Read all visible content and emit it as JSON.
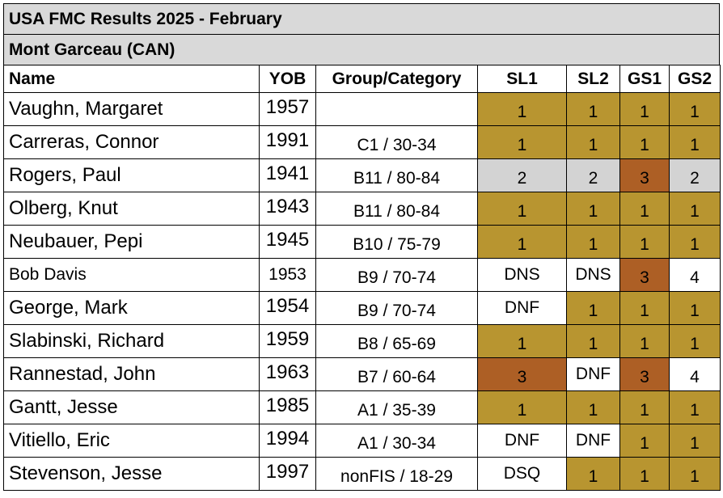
{
  "title": "USA FMC Results 2025 - February",
  "subtitle": "Mont Garceau (CAN)",
  "headers": {
    "name": "Name",
    "yob": "YOB",
    "group": "Group/Category",
    "sl1": "SL1",
    "sl2": "SL2",
    "gs1": "GS1",
    "gs2": "GS2"
  },
  "colors": {
    "gold": "#b89530",
    "bronze": "#ad5f25",
    "silver": "#d3d3d3",
    "header": "#d9d9d9"
  },
  "rows": [
    {
      "name": "Vaughn, Margaret",
      "yob": "1957",
      "group": "",
      "results": [
        "1",
        "1",
        "1",
        "1"
      ]
    },
    {
      "name": "Carreras, Connor",
      "yob": "1991",
      "group": "C1 / 30-34",
      "results": [
        "1",
        "1",
        "1",
        "1"
      ]
    },
    {
      "name": "Rogers, Paul",
      "yob": "1941",
      "group": "B11 / 80-84",
      "results": [
        "2",
        "2",
        "3",
        "2"
      ]
    },
    {
      "name": "Olberg, Knut",
      "yob": "1943",
      "group": "B11 / 80-84",
      "results": [
        "1",
        "1",
        "1",
        "1"
      ]
    },
    {
      "name": "Neubauer, Pepi",
      "yob": "1945",
      "group": "B10 / 75-79",
      "results": [
        "1",
        "1",
        "1",
        "1"
      ]
    },
    {
      "name": "Bob Davis",
      "yob": "1953",
      "group": "B9 / 70-74",
      "results": [
        "DNS",
        "DNS",
        "3",
        "4"
      ]
    },
    {
      "name": "George, Mark",
      "yob": "1954",
      "group": "B9 / 70-74",
      "results": [
        "DNF",
        "1",
        "1",
        "1"
      ]
    },
    {
      "name": "Slabinski, Richard",
      "yob": "1959",
      "group": "B8 / 65-69",
      "results": [
        "1",
        "1",
        "1",
        "1"
      ]
    },
    {
      "name": "Rannestad, John",
      "yob": "1963",
      "group": "B7 / 60-64",
      "results": [
        "3",
        "DNF",
        "3",
        "4"
      ]
    },
    {
      "name": "Gantt, Jesse",
      "yob": "1985",
      "group": "A1 / 35-39",
      "results": [
        "1",
        "1",
        "1",
        "1"
      ]
    },
    {
      "name": "Vitiello, Eric",
      "yob": "1994",
      "group": "A1 / 30-34",
      "results": [
        "DNF",
        "DNF",
        "1",
        "1"
      ]
    },
    {
      "name": "Stevenson, Jesse",
      "yob": "1997",
      "group": "nonFIS / 18-29",
      "results": [
        "DSQ",
        "1",
        "1",
        "1"
      ]
    }
  ]
}
